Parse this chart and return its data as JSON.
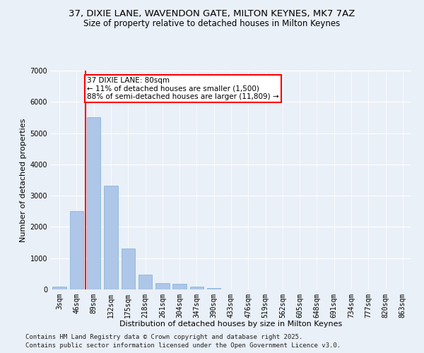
{
  "title1": "37, DIXIE LANE, WAVENDON GATE, MILTON KEYNES, MK7 7AZ",
  "title2": "Size of property relative to detached houses in Milton Keynes",
  "xlabel": "Distribution of detached houses by size in Milton Keynes",
  "ylabel": "Number of detached properties",
  "categories": [
    "3sqm",
    "46sqm",
    "89sqm",
    "132sqm",
    "175sqm",
    "218sqm",
    "261sqm",
    "304sqm",
    "347sqm",
    "390sqm",
    "433sqm",
    "476sqm",
    "519sqm",
    "562sqm",
    "605sqm",
    "648sqm",
    "691sqm",
    "734sqm",
    "777sqm",
    "820sqm",
    "863sqm"
  ],
  "values": [
    100,
    2500,
    5500,
    3330,
    1300,
    480,
    210,
    190,
    90,
    55,
    0,
    0,
    0,
    0,
    0,
    0,
    0,
    0,
    0,
    0,
    0
  ],
  "bar_color": "#aec6e8",
  "bar_edge_color": "#7bafd4",
  "vline_x_idx": 1.5,
  "vline_color": "red",
  "annotation_text": "37 DIXIE LANE: 80sqm\n← 11% of detached houses are smaller (1,500)\n88% of semi-detached houses are larger (11,809) →",
  "annotation_box_color": "white",
  "annotation_box_edge": "red",
  "ylim": [
    0,
    7000
  ],
  "yticks": [
    0,
    1000,
    2000,
    3000,
    4000,
    5000,
    6000,
    7000
  ],
  "bg_color": "#eaf0f8",
  "footer1": "Contains HM Land Registry data © Crown copyright and database right 2025.",
  "footer2": "Contains public sector information licensed under the Open Government Licence v3.0.",
  "title_fontsize": 9.5,
  "subtitle_fontsize": 8.5,
  "axis_label_fontsize": 8,
  "tick_fontsize": 7,
  "footer_fontsize": 6.5,
  "annotation_fontsize": 7.5
}
